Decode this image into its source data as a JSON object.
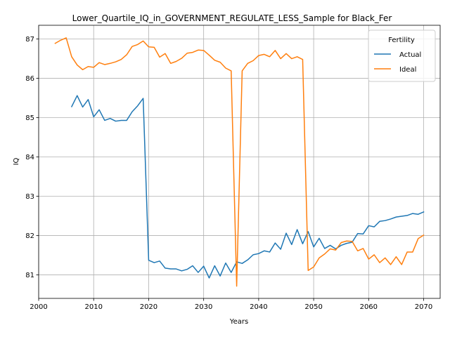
{
  "chart_data": {
    "type": "line",
    "title": "Lower_Quartile_IQ_in_GOVERNMENT_REGULATE_LESS_Sample for Black_Fer",
    "xlabel": "Years",
    "ylabel": "IQ",
    "xlim": [
      2000,
      2073
    ],
    "ylim": [
      80.4,
      87.35
    ],
    "xticks": [
      2000,
      2010,
      2020,
      2030,
      2040,
      2050,
      2060,
      2070
    ],
    "yticks": [
      81,
      82,
      83,
      84,
      85,
      86,
      87
    ],
    "grid": true,
    "legend": {
      "title": "Fertility",
      "position": "top-right"
    },
    "series": [
      {
        "name": "Actual",
        "color": "#1f77b4",
        "x": [
          2006,
          2007,
          2008,
          2009,
          2010,
          2011,
          2012,
          2013,
          2014,
          2015,
          2016,
          2017,
          2018,
          2019,
          2020,
          2021,
          2022,
          2023,
          2024,
          2025,
          2026,
          2027,
          2028,
          2029,
          2030,
          2031,
          2032,
          2033,
          2034,
          2035,
          2036,
          2037,
          2038,
          2039,
          2040,
          2041,
          2042,
          2043,
          2044,
          2045,
          2046,
          2047,
          2048,
          2049,
          2050,
          2051,
          2052,
          2053,
          2054,
          2055,
          2056,
          2057,
          2058,
          2059,
          2060,
          2061,
          2062,
          2063,
          2064,
          2065,
          2066,
          2067,
          2068,
          2069,
          2070
        ],
        "values": [
          85.28,
          85.56,
          85.27,
          85.46,
          85.02,
          85.2,
          84.93,
          84.98,
          84.91,
          84.93,
          84.93,
          85.15,
          85.3,
          85.49,
          81.37,
          81.31,
          81.35,
          81.17,
          81.15,
          81.15,
          81.1,
          81.14,
          81.23,
          81.06,
          81.22,
          80.92,
          81.23,
          80.97,
          81.3,
          81.06,
          81.33,
          81.29,
          81.38,
          81.51,
          81.54,
          81.61,
          81.58,
          81.81,
          81.65,
          82.06,
          81.77,
          82.15,
          81.79,
          82.1,
          81.71,
          81.93,
          81.67,
          81.75,
          81.66,
          81.75,
          81.8,
          81.83,
          82.05,
          82.04,
          82.25,
          82.22,
          82.36,
          82.38,
          82.42,
          82.47,
          82.49,
          82.51,
          82.56,
          82.54,
          82.6
        ]
      },
      {
        "name": "Ideal",
        "color": "#ff7f0e",
        "x": [
          2003,
          2004,
          2005,
          2006,
          2007,
          2008,
          2009,
          2010,
          2011,
          2012,
          2013,
          2014,
          2015,
          2016,
          2017,
          2018,
          2019,
          2020,
          2021,
          2022,
          2023,
          2024,
          2025,
          2026,
          2027,
          2028,
          2029,
          2030,
          2031,
          2032,
          2033,
          2034,
          2035,
          2036,
          2037,
          2038,
          2039,
          2040,
          2041,
          2042,
          2043,
          2044,
          2045,
          2046,
          2047,
          2048,
          2049,
          2050,
          2051,
          2052,
          2053,
          2054,
          2055,
          2056,
          2057,
          2058,
          2059,
          2060,
          2061,
          2062,
          2063,
          2064,
          2065,
          2066,
          2067,
          2068,
          2069,
          2070
        ],
        "values": [
          86.89,
          86.97,
          87.03,
          86.55,
          86.34,
          86.22,
          86.3,
          86.28,
          86.4,
          86.35,
          86.38,
          86.42,
          86.48,
          86.6,
          86.81,
          86.86,
          86.95,
          86.8,
          86.79,
          86.54,
          86.63,
          86.38,
          86.43,
          86.51,
          86.64,
          86.66,
          86.72,
          86.71,
          86.59,
          86.46,
          86.41,
          86.26,
          86.19,
          80.71,
          86.19,
          86.38,
          86.45,
          86.58,
          86.61,
          86.55,
          86.71,
          86.5,
          86.63,
          86.5,
          86.55,
          86.48,
          81.11,
          81.2,
          81.43,
          81.53,
          81.66,
          81.63,
          81.82,
          81.86,
          81.85,
          81.61,
          81.67,
          81.4,
          81.51,
          81.31,
          81.43,
          81.26,
          81.46,
          81.26,
          81.58,
          81.58,
          81.92,
          82.01
        ]
      }
    ]
  }
}
